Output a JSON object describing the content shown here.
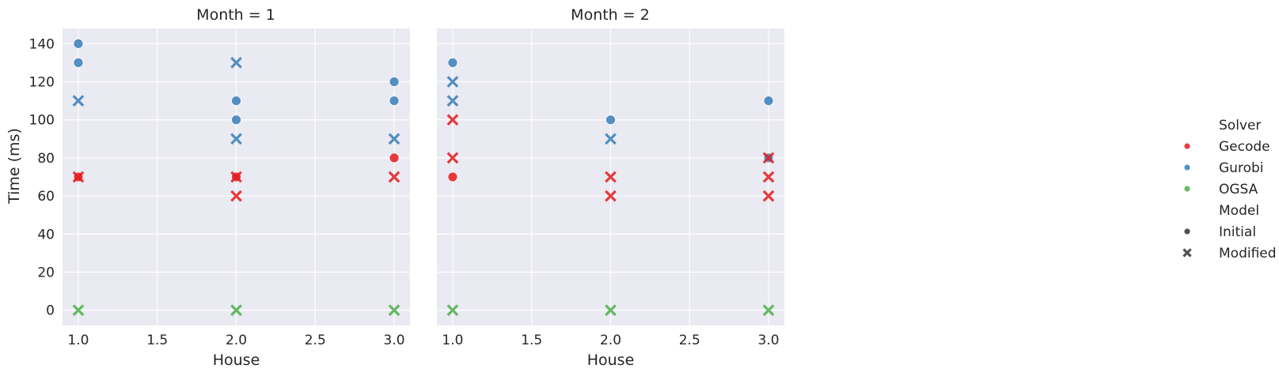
{
  "chart_data": {
    "type": "scatter",
    "facet_by": "Month",
    "panels": [
      {
        "title": "Month = 1",
        "xlabel": "House"
      },
      {
        "title": "Month = 2",
        "xlabel": "House"
      }
    ],
    "ylabel": "Time (ms)",
    "xlim": [
      0.9,
      3.1
    ],
    "ylim": [
      -8,
      148
    ],
    "xticks": [
      "1.0",
      "1.5",
      "2.0",
      "2.5",
      "3.0"
    ],
    "xtick_values": [
      1.0,
      1.5,
      2.0,
      2.5,
      3.0
    ],
    "yticks": [
      "0",
      "20",
      "40",
      "60",
      "80",
      "100",
      "120",
      "140"
    ],
    "ytick_values": [
      0,
      20,
      40,
      60,
      80,
      100,
      120,
      140
    ],
    "grid": true,
    "legend_position": "right",
    "legend": {
      "hue_title": "Solver",
      "hue_entries": [
        {
          "label": "Gecode",
          "color": "#e41a1c"
        },
        {
          "label": "Gurobi",
          "color": "#377eb8"
        },
        {
          "label": "OGSA",
          "color": "#4daf4a"
        }
      ],
      "style_title": "Model",
      "style_entries": [
        {
          "label": "Initial",
          "marker": "circle"
        },
        {
          "label": "Modified",
          "marker": "x"
        }
      ]
    },
    "points": [
      [
        {
          "house": 1,
          "time": 140,
          "solver": "Gurobi",
          "model": "Initial"
        },
        {
          "house": 1,
          "time": 130,
          "solver": "Gurobi",
          "model": "Initial"
        },
        {
          "house": 1,
          "time": 110,
          "solver": "Gurobi",
          "model": "Modified"
        },
        {
          "house": 1,
          "time": 70,
          "solver": "Gecode",
          "model": "Initial"
        },
        {
          "house": 1,
          "time": 70,
          "solver": "Gecode",
          "model": "Modified"
        },
        {
          "house": 1,
          "time": 0,
          "solver": "OGSA",
          "model": "Modified"
        },
        {
          "house": 2,
          "time": 130,
          "solver": "Gurobi",
          "model": "Modified"
        },
        {
          "house": 2,
          "time": 110,
          "solver": "Gurobi",
          "model": "Initial"
        },
        {
          "house": 2,
          "time": 100,
          "solver": "Gurobi",
          "model": "Initial"
        },
        {
          "house": 2,
          "time": 90,
          "solver": "Gurobi",
          "model": "Modified"
        },
        {
          "house": 2,
          "time": 70,
          "solver": "Gecode",
          "model": "Initial"
        },
        {
          "house": 2,
          "time": 70,
          "solver": "Gecode",
          "model": "Modified"
        },
        {
          "house": 2,
          "time": 60,
          "solver": "Gecode",
          "model": "Modified"
        },
        {
          "house": 2,
          "time": 0,
          "solver": "OGSA",
          "model": "Modified"
        },
        {
          "house": 3,
          "time": 120,
          "solver": "Gurobi",
          "model": "Initial"
        },
        {
          "house": 3,
          "time": 110,
          "solver": "Gurobi",
          "model": "Initial"
        },
        {
          "house": 3,
          "time": 90,
          "solver": "Gurobi",
          "model": "Modified"
        },
        {
          "house": 3,
          "time": 80,
          "solver": "Gecode",
          "model": "Initial"
        },
        {
          "house": 3,
          "time": 70,
          "solver": "Gecode",
          "model": "Modified"
        },
        {
          "house": 3,
          "time": 0,
          "solver": "OGSA",
          "model": "Modified"
        }
      ],
      [
        {
          "house": 1,
          "time": 130,
          "solver": "Gurobi",
          "model": "Initial"
        },
        {
          "house": 1,
          "time": 120,
          "solver": "Gurobi",
          "model": "Modified"
        },
        {
          "house": 1,
          "time": 110,
          "solver": "Gurobi",
          "model": "Modified"
        },
        {
          "house": 1,
          "time": 100,
          "solver": "Gecode",
          "model": "Modified"
        },
        {
          "house": 1,
          "time": 80,
          "solver": "Gecode",
          "model": "Modified"
        },
        {
          "house": 1,
          "time": 70,
          "solver": "Gecode",
          "model": "Initial"
        },
        {
          "house": 1,
          "time": 0,
          "solver": "OGSA",
          "model": "Modified"
        },
        {
          "house": 2,
          "time": 100,
          "solver": "Gurobi",
          "model": "Initial"
        },
        {
          "house": 2,
          "time": 90,
          "solver": "Gurobi",
          "model": "Modified"
        },
        {
          "house": 2,
          "time": 70,
          "solver": "Gecode",
          "model": "Modified"
        },
        {
          "house": 2,
          "time": 60,
          "solver": "Gecode",
          "model": "Modified"
        },
        {
          "house": 2,
          "time": 0,
          "solver": "OGSA",
          "model": "Modified"
        },
        {
          "house": 3,
          "time": 110,
          "solver": "Gurobi",
          "model": "Initial"
        },
        {
          "house": 3,
          "time": 80,
          "solver": "Gurobi",
          "model": "Initial"
        },
        {
          "house": 3,
          "time": 80,
          "solver": "Gecode",
          "model": "Modified"
        },
        {
          "house": 3,
          "time": 70,
          "solver": "Gecode",
          "model": "Modified"
        },
        {
          "house": 3,
          "time": 60,
          "solver": "Gecode",
          "model": "Modified"
        },
        {
          "house": 3,
          "time": 0,
          "solver": "OGSA",
          "model": "Modified"
        }
      ]
    ]
  }
}
